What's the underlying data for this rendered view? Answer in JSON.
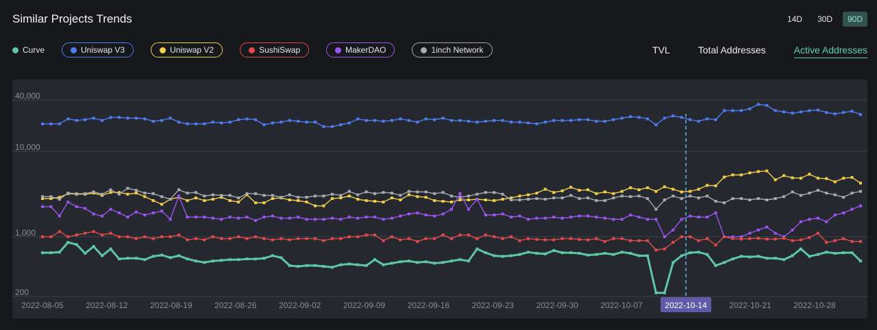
{
  "header": {
    "title": "Similar Projects Trends"
  },
  "ranges": [
    {
      "label": "14D",
      "active": false
    },
    {
      "label": "30D",
      "active": false
    },
    {
      "label": "90D",
      "active": true
    }
  ],
  "legend": [
    {
      "label": "Curve",
      "color": "#5ec7a4",
      "boxed": false
    },
    {
      "label": "Uniswap V3",
      "color": "#4f7cf0",
      "boxed": true
    },
    {
      "label": "Uniswap V2",
      "color": "#f2cf4a",
      "boxed": true
    },
    {
      "label": "SushiSwap",
      "color": "#e24b4b",
      "boxed": true
    },
    {
      "label": "MakerDAO",
      "color": "#9b55f0",
      "boxed": true
    },
    {
      "label": "1inch Network",
      "color": "#a9a9b0",
      "boxed": true
    }
  ],
  "metrics": [
    {
      "label": "TVL",
      "active": false
    },
    {
      "label": "Total Addresses",
      "active": false
    },
    {
      "label": "Active Addresses",
      "active": true
    }
  ],
  "chart_data": {
    "type": "line",
    "y_scale": "log",
    "ylim": [
      200,
      60000
    ],
    "y_ticks": [
      {
        "value": 40000,
        "label": "40,000"
      },
      {
        "value": 10000,
        "label": "10,000"
      },
      {
        "value": 1000,
        "label": "1,000"
      },
      {
        "value": 200,
        "label": "200"
      }
    ],
    "x_start": "2022-08-05",
    "x_end": "2022-11-02",
    "x_ticks": [
      "2022-08-05",
      "2022-08-12",
      "2022-08-19",
      "2022-08-26",
      "2022-09-02",
      "2022-09-09",
      "2022-09-16",
      "2022-09-23",
      "2022-09-30",
      "2022-10-07",
      "2022-10-14",
      "2022-10-21",
      "2022-10-28"
    ],
    "crosshair_date": "2022-10-14",
    "grid": true,
    "series": [
      {
        "name": "Uniswap V3",
        "color": "#4f7cf0",
        "values": [
          21000,
          21000,
          21000,
          24000,
          23000,
          23500,
          24500,
          23000,
          25000,
          25000,
          24500,
          24500,
          24000,
          22500,
          23000,
          24500,
          22000,
          21000,
          21000,
          21000,
          22000,
          21500,
          22000,
          23500,
          24000,
          23500,
          20500,
          21500,
          22000,
          23000,
          22500,
          22000,
          22000,
          19500,
          19500,
          20500,
          21500,
          24000,
          23000,
          23000,
          22500,
          23000,
          24000,
          23000,
          22000,
          24000,
          23500,
          24500,
          23000,
          23000,
          22500,
          22000,
          22500,
          23000,
          23000,
          22000,
          22000,
          21500,
          21000,
          22000,
          23000,
          23000,
          23000,
          23500,
          23500,
          22500,
          22500,
          23500,
          24500,
          25500,
          25000,
          24000,
          20500,
          24500,
          26000,
          25000,
          23500,
          22500,
          24000,
          23500,
          30000,
          30000,
          30000,
          31500,
          35500,
          34500,
          30000,
          29000,
          28000,
          29000,
          30000,
          30500,
          28500,
          27500,
          28500,
          29500,
          27000
        ]
      },
      {
        "name": "Uniswap V2",
        "color": "#f2cf4a",
        "values": [
          2800,
          2800,
          2900,
          3200,
          3150,
          3150,
          3250,
          3050,
          3300,
          3300,
          3150,
          3250,
          2950,
          2650,
          2400,
          2750,
          2900,
          2650,
          2850,
          2650,
          2750,
          2900,
          2650,
          2550,
          3100,
          2500,
          2500,
          2800,
          2850,
          2700,
          2650,
          2550,
          2300,
          2300,
          2800,
          2850,
          3000,
          2750,
          2650,
          2600,
          2550,
          2850,
          2700,
          3100,
          2950,
          2900,
          2650,
          2600,
          2550,
          2700,
          2700,
          2750,
          2700,
          2650,
          2750,
          2850,
          3000,
          3100,
          3250,
          3600,
          3300,
          3450,
          3800,
          3500,
          3550,
          3200,
          3350,
          3200,
          3400,
          3750,
          3550,
          3750,
          3400,
          3850,
          3600,
          3350,
          3400,
          3600,
          4000,
          3950,
          5000,
          5300,
          5300,
          5600,
          5800,
          5900,
          4650,
          5200,
          4900,
          4850,
          5400,
          4850,
          4800,
          4400,
          4850,
          4950,
          4250
        ]
      },
      {
        "name": "1inch Network",
        "color": "#a9a9b0",
        "values": [
          2950,
          2950,
          2750,
          3250,
          3200,
          3200,
          3350,
          3150,
          3550,
          3150,
          3700,
          3500,
          3250,
          3200,
          2950,
          2750,
          3550,
          3250,
          3300,
          3000,
          3100,
          3050,
          3050,
          2850,
          3200,
          3200,
          3050,
          3050,
          2900,
          3100,
          2900,
          2900,
          3000,
          3000,
          3150,
          3050,
          3400,
          3100,
          3350,
          3200,
          3300,
          3250,
          3050,
          3400,
          3350,
          3350,
          3200,
          3300,
          3000,
          2900,
          3000,
          3150,
          3300,
          3300,
          3150,
          2700,
          2700,
          2750,
          2800,
          2750,
          2850,
          2850,
          3050,
          2800,
          2850,
          2650,
          2650,
          2850,
          3000,
          2950,
          3000,
          2800,
          2100,
          2700,
          3000,
          2800,
          3000,
          2850,
          3000,
          2600,
          2500,
          2800,
          2800,
          2700,
          2800,
          2700,
          2800,
          2950,
          3350,
          3050,
          3250,
          3500,
          3250,
          3100,
          2900,
          3250,
          3400
        ]
      },
      {
        "name": "MakerDAO",
        "color": "#9b55f0",
        "values": [
          2250,
          2250,
          1750,
          2550,
          2250,
          2150,
          1850,
          1750,
          2100,
          1900,
          1700,
          1950,
          1800,
          1900,
          2000,
          1600,
          3000,
          1700,
          1700,
          1700,
          1650,
          1600,
          1700,
          1650,
          1700,
          1550,
          1700,
          1750,
          1650,
          1650,
          1700,
          1600,
          1600,
          1600,
          1650,
          1600,
          1700,
          1650,
          1700,
          1700,
          1600,
          1650,
          1750,
          1850,
          1900,
          1800,
          1750,
          1850,
          2100,
          3200,
          2100,
          2750,
          1800,
          1800,
          1850,
          1700,
          1750,
          1600,
          1650,
          1650,
          1700,
          1650,
          1700,
          1750,
          1750,
          1700,
          1650,
          1600,
          1600,
          1800,
          1700,
          1600,
          1600,
          1000,
          1200,
          1600,
          1750,
          1700,
          1700,
          1900,
          1000,
          1000,
          1000,
          1100,
          1200,
          1300,
          1100,
          1000,
          1200,
          1500,
          1600,
          1650,
          1500,
          1800,
          1900,
          2100,
          2300
        ]
      },
      {
        "name": "SushiSwap",
        "color": "#e24b4b",
        "values": [
          1000,
          1000,
          1150,
          1000,
          1050,
          1100,
          1150,
          1050,
          1100,
          1000,
          1000,
          950,
          1000,
          950,
          1000,
          1000,
          1050,
          920,
          950,
          920,
          1000,
          950,
          950,
          1000,
          950,
          1000,
          950,
          920,
          950,
          920,
          950,
          950,
          950,
          900,
          950,
          950,
          1000,
          1000,
          1050,
          1050,
          900,
          1000,
          920,
          950,
          880,
          950,
          950,
          1050,
          950,
          1050,
          1050,
          950,
          1050,
          1000,
          950,
          1000,
          900,
          950,
          930,
          920,
          920,
          950,
          950,
          930,
          920,
          950,
          880,
          950,
          950,
          900,
          900,
          900,
          700,
          720,
          860,
          1000,
          1000,
          900,
          950,
          800,
          1000,
          950,
          940,
          950,
          960,
          940,
          940,
          960,
          900,
          920,
          980,
          1100,
          860,
          900,
          950,
          880,
          880
        ]
      },
      {
        "name": "Curve",
        "color": "#5ec7a4",
        "values": [
          650,
          650,
          660,
          860,
          810,
          640,
          770,
          600,
          720,
          550,
          560,
          560,
          540,
          590,
          610,
          570,
          600,
          550,
          520,
          500,
          520,
          530,
          540,
          540,
          550,
          550,
          560,
          600,
          570,
          460,
          450,
          460,
          460,
          450,
          440,
          470,
          480,
          470,
          460,
          540,
          470,
          490,
          510,
          520,
          500,
          510,
          490,
          500,
          520,
          540,
          520,
          720,
          650,
          600,
          590,
          600,
          620,
          660,
          640,
          630,
          690,
          650,
          650,
          640,
          610,
          620,
          640,
          620,
          660,
          640,
          600,
          600,
          220,
          220,
          500,
          600,
          650,
          660,
          620,
          460,
          500,
          550,
          590,
          580,
          590,
          560,
          560,
          540,
          600,
          720,
          590,
          620,
          660,
          640,
          650,
          650,
          520
        ]
      }
    ]
  }
}
